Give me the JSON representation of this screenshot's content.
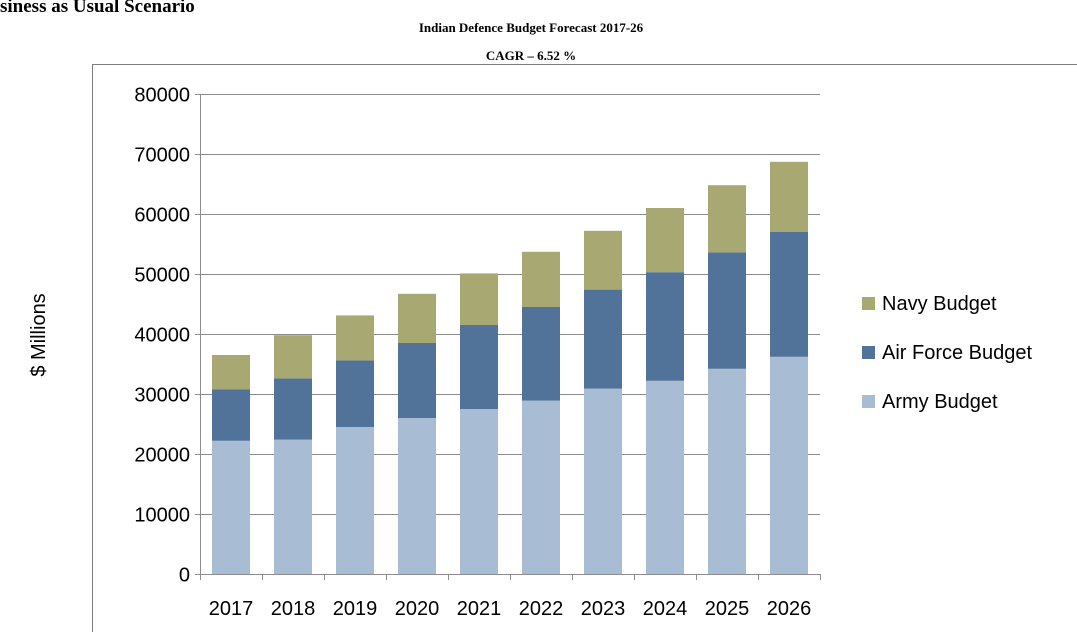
{
  "page": {
    "heading": "siness as Usual Scenario"
  },
  "chart_data": {
    "type": "bar",
    "stacked": true,
    "title": "Indian Defence Budget Forecast 2017-26",
    "subtitle": "CAGR – 6.52 %",
    "xlabel": "",
    "ylabel": "$ Millions",
    "ylim": [
      0,
      80000
    ],
    "yticks": [
      0,
      10000,
      20000,
      30000,
      40000,
      50000,
      60000,
      70000,
      80000
    ],
    "grid": true,
    "legend_position": "right",
    "categories": [
      "2017",
      "2018",
      "2019",
      "2020",
      "2021",
      "2022",
      "2023",
      "2024",
      "2025",
      "2026"
    ],
    "series": [
      {
        "name": "Army Budget",
        "color": "#a8bcd3",
        "values": [
          22200,
          22400,
          24500,
          26000,
          27500,
          28900,
          30900,
          32200,
          34200,
          36200
        ]
      },
      {
        "name": "Air Force Budget",
        "color": "#51739a",
        "values": [
          8600,
          10200,
          11100,
          12500,
          14000,
          15600,
          16500,
          18100,
          19400,
          20800
        ]
      },
      {
        "name": "Navy Budget",
        "color": "#a7a872",
        "values": [
          5700,
          7200,
          7500,
          8200,
          8600,
          9200,
          9800,
          10700,
          11200,
          11700
        ]
      }
    ],
    "legend_order": [
      "Navy Budget",
      "Air Force Budget",
      "Army Budget"
    ]
  }
}
